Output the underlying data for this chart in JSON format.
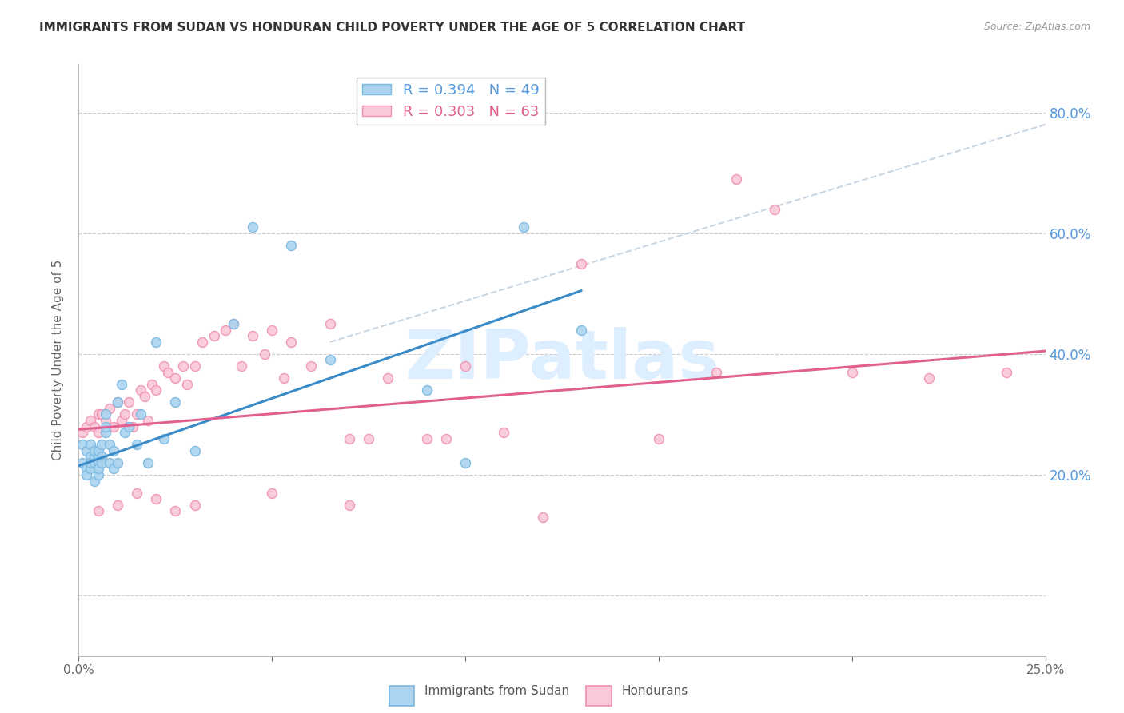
{
  "title": "IMMIGRANTS FROM SUDAN VS HONDURAN CHILD POVERTY UNDER THE AGE OF 5 CORRELATION CHART",
  "source": "Source: ZipAtlas.com",
  "ylabel": "Child Poverty Under the Age of 5",
  "xlim": [
    0.0,
    0.25
  ],
  "ylim": [
    -0.1,
    0.88
  ],
  "ytick_positions": [
    0.0,
    0.2,
    0.4,
    0.6,
    0.8
  ],
  "xtick_positions": [
    0.0,
    0.05,
    0.1,
    0.15,
    0.2,
    0.25
  ],
  "xtick_labels": [
    "0.0%",
    "",
    "",
    "",
    "",
    "25.0%"
  ],
  "ytick_labels_right": [
    "",
    "20.0%",
    "40.0%",
    "60.0%",
    "80.0%"
  ],
  "legend_entries": [
    {
      "label": "Immigrants from Sudan",
      "R": "0.394",
      "N": "49"
    },
    {
      "label": "Hondurans",
      "R": "0.303",
      "N": "63"
    }
  ],
  "blue_points_x": [
    0.001,
    0.001,
    0.002,
    0.002,
    0.002,
    0.003,
    0.003,
    0.003,
    0.003,
    0.003,
    0.004,
    0.004,
    0.004,
    0.004,
    0.005,
    0.005,
    0.005,
    0.005,
    0.005,
    0.006,
    0.006,
    0.006,
    0.007,
    0.007,
    0.007,
    0.008,
    0.008,
    0.009,
    0.009,
    0.01,
    0.01,
    0.011,
    0.012,
    0.013,
    0.015,
    0.016,
    0.018,
    0.02,
    0.022,
    0.025,
    0.03,
    0.04,
    0.045,
    0.055,
    0.065,
    0.09,
    0.1,
    0.115,
    0.13
  ],
  "blue_points_y": [
    0.22,
    0.25,
    0.21,
    0.24,
    0.2,
    0.23,
    0.22,
    0.25,
    0.21,
    0.22,
    0.23,
    0.19,
    0.22,
    0.24,
    0.23,
    0.22,
    0.2,
    0.24,
    0.21,
    0.23,
    0.25,
    0.22,
    0.3,
    0.27,
    0.28,
    0.22,
    0.25,
    0.21,
    0.24,
    0.32,
    0.22,
    0.35,
    0.27,
    0.28,
    0.25,
    0.3,
    0.22,
    0.42,
    0.26,
    0.32,
    0.24,
    0.45,
    0.61,
    0.58,
    0.39,
    0.34,
    0.22,
    0.61,
    0.44
  ],
  "pink_points_x": [
    0.001,
    0.002,
    0.003,
    0.004,
    0.005,
    0.005,
    0.006,
    0.007,
    0.008,
    0.009,
    0.01,
    0.011,
    0.012,
    0.013,
    0.014,
    0.015,
    0.016,
    0.017,
    0.018,
    0.019,
    0.02,
    0.022,
    0.023,
    0.025,
    0.027,
    0.028,
    0.03,
    0.032,
    0.035,
    0.038,
    0.04,
    0.042,
    0.045,
    0.048,
    0.05,
    0.053,
    0.055,
    0.06,
    0.065,
    0.07,
    0.075,
    0.08,
    0.09,
    0.095,
    0.1,
    0.11,
    0.13,
    0.15,
    0.165,
    0.17,
    0.18,
    0.2,
    0.22,
    0.24,
    0.005,
    0.01,
    0.015,
    0.02,
    0.025,
    0.03,
    0.05,
    0.07,
    0.12
  ],
  "pink_points_y": [
    0.27,
    0.28,
    0.29,
    0.28,
    0.27,
    0.3,
    0.3,
    0.29,
    0.31,
    0.28,
    0.32,
    0.29,
    0.3,
    0.32,
    0.28,
    0.3,
    0.34,
    0.33,
    0.29,
    0.35,
    0.34,
    0.38,
    0.37,
    0.36,
    0.38,
    0.35,
    0.38,
    0.42,
    0.43,
    0.44,
    0.45,
    0.38,
    0.43,
    0.4,
    0.44,
    0.36,
    0.42,
    0.38,
    0.45,
    0.26,
    0.26,
    0.36,
    0.26,
    0.26,
    0.38,
    0.27,
    0.55,
    0.26,
    0.37,
    0.69,
    0.64,
    0.37,
    0.36,
    0.37,
    0.14,
    0.15,
    0.17,
    0.16,
    0.14,
    0.15,
    0.17,
    0.15,
    0.13
  ],
  "blue_line_x": [
    0.0,
    0.13
  ],
  "blue_line_y": [
    0.215,
    0.505
  ],
  "pink_line_x": [
    0.0,
    0.25
  ],
  "pink_line_y": [
    0.275,
    0.405
  ],
  "dashed_line_x": [
    0.065,
    0.25
  ],
  "dashed_line_y": [
    0.42,
    0.78
  ],
  "bg_color": "#ffffff",
  "grid_color": "#cccccc",
  "title_color": "#333333",
  "axis_color": "#bbbbbb",
  "right_tick_color": "#5599dd",
  "marker_size": 75,
  "blue_marker_color": "#aad4f0",
  "blue_marker_edge": "#7ab8e0",
  "pink_marker_color": "#fac8d8",
  "pink_marker_edge": "#f090b0",
  "watermark_color": "#ddeeff",
  "watermark_text": "ZIPatlas"
}
